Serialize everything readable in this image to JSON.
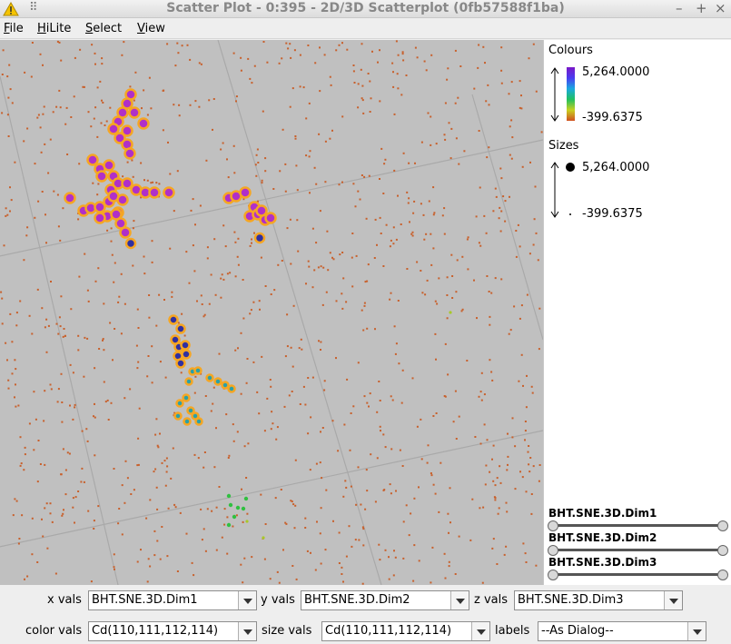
{
  "window": {
    "title": "Scatter Plot - 0:395 - 2D/3D Scatterplot (0fb57588f1ba)",
    "warning_icon_color": "#f5c400",
    "minimize_glyph": "–",
    "maximize_glyph": "+",
    "close_glyph": "×",
    "pin_glyph": "⠿"
  },
  "menubar": {
    "items": [
      {
        "label": "File",
        "mnemonic": "F"
      },
      {
        "label": "HiLite",
        "mnemonic": "H"
      },
      {
        "label": "Select",
        "mnemonic": "S"
      },
      {
        "label": "View",
        "mnemonic": "V"
      }
    ]
  },
  "legend": {
    "colours_title": "Colours",
    "colours_max": "5,264.0000",
    "colours_min": "-399.6375",
    "sizes_title": "Sizes",
    "sizes_max": "5,264.0000",
    "sizes_min": "-399.6375",
    "gradient_colors": [
      "#7a18c8",
      "#4a3cf0",
      "#1aa8e0",
      "#20c060",
      "#c8d020",
      "#e0a020",
      "#d05020"
    ]
  },
  "dimensions": {
    "items": [
      {
        "label": "BHT.SNE.3D.Dim1"
      },
      {
        "label": "BHT.SNE.3D.Dim2"
      },
      {
        "label": "BHT.SNE.3D.Dim3"
      }
    ]
  },
  "controls": {
    "x_label": "x vals",
    "x_value": "BHT.SNE.3D.Dim1",
    "y_label": "y vals",
    "y_value": "BHT.SNE.3D.Dim2",
    "z_label": "z vals",
    "z_value": "BHT.SNE.3D.Dim3",
    "color_label": "color vals",
    "color_value": "Cd(110,111,112,114)",
    "size_label": "size vals",
    "size_value": "Cd(110,111,112,114)",
    "labels_label": "labels",
    "labels_value": "--As Dialog--"
  },
  "plot": {
    "background": "#c0c0c0",
    "gridline_color": "#a9a9a9",
    "background_point_color": "#c8602c",
    "highlight_ring_color": "#f5a623",
    "cluster_colors": {
      "magenta": "#b030c8",
      "navy": "#3030a0",
      "teal": "#2aa0a8",
      "green": "#30c040",
      "yellowgreen": "#a8c828"
    }
  }
}
